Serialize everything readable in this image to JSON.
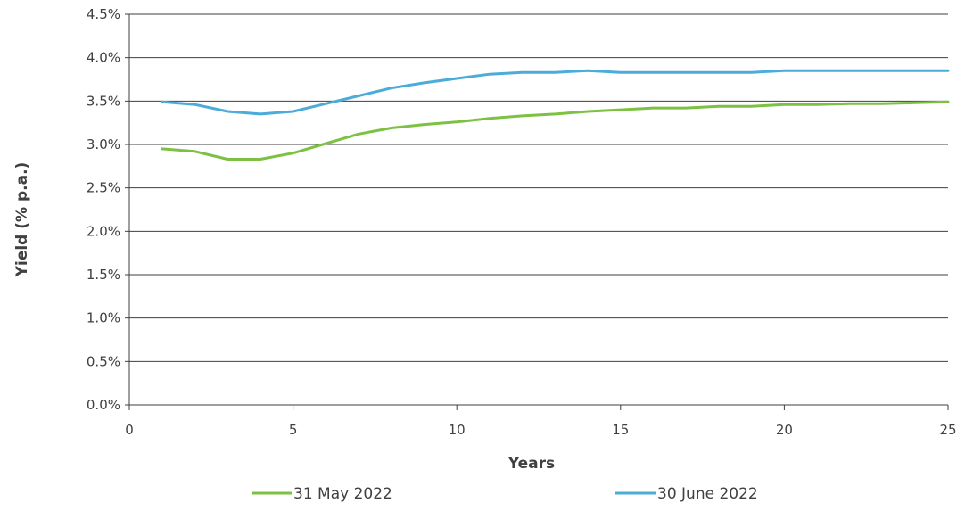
{
  "chart_data": {
    "type": "line",
    "title": "",
    "xlabel": "Years",
    "ylabel": "Yield (% p.a.)",
    "xlim": [
      0,
      25
    ],
    "ylim": [
      0,
      4.5
    ],
    "x_ticks": [
      0,
      5,
      10,
      15,
      20,
      25
    ],
    "x_tick_labels": [
      "0",
      "5",
      "10",
      "15",
      "20",
      "25"
    ],
    "y_ticks": [
      0,
      0.5,
      1.0,
      1.5,
      2.0,
      2.5,
      3.0,
      3.5,
      4.0,
      4.5
    ],
    "y_tick_labels": [
      "0.0%",
      "0.5%",
      "1.0%",
      "1.5%",
      "2.0%",
      "2.5%",
      "3.0%",
      "3.5%",
      "4.0%",
      "4.5%"
    ],
    "grid": "horizontal",
    "legend_position": "bottom",
    "x": [
      1,
      2,
      3,
      4,
      5,
      6,
      7,
      8,
      9,
      10,
      11,
      12,
      13,
      14,
      15,
      16,
      17,
      18,
      19,
      20,
      21,
      22,
      23,
      24,
      25
    ],
    "series": [
      {
        "name": "31 May 2022",
        "color": "#7dc142",
        "values": [
          2.95,
          2.92,
          2.83,
          2.83,
          2.9,
          3.01,
          3.12,
          3.19,
          3.23,
          3.26,
          3.3,
          3.33,
          3.35,
          3.38,
          3.4,
          3.42,
          3.42,
          3.44,
          3.44,
          3.46,
          3.46,
          3.47,
          3.47,
          3.48,
          3.49
        ]
      },
      {
        "name": "30 June 2022",
        "color": "#4bacd9",
        "values": [
          3.49,
          3.46,
          3.38,
          3.35,
          3.38,
          3.47,
          3.56,
          3.65,
          3.71,
          3.76,
          3.81,
          3.83,
          3.83,
          3.85,
          3.83,
          3.83,
          3.83,
          3.83,
          3.83,
          3.85,
          3.85,
          3.85,
          3.85,
          3.85,
          3.85
        ]
      }
    ]
  }
}
